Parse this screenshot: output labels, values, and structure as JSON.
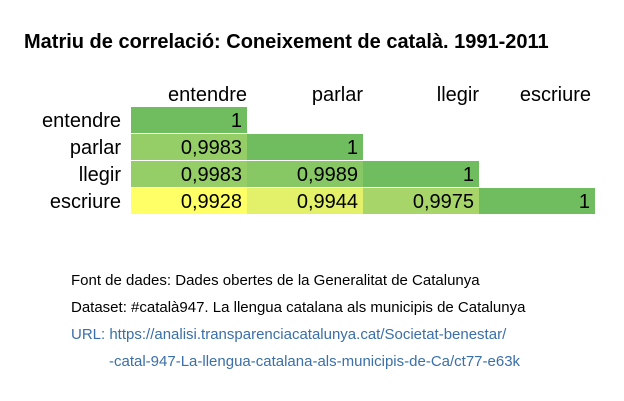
{
  "chart_data": {
    "type": "heatmap",
    "title": "Matriu de correlació: Coneixement de català. 1991-2011",
    "columns": [
      "entendre",
      "parlar",
      "llegir",
      "escriure"
    ],
    "rows": [
      "entendre",
      "parlar",
      "llegir",
      "escriure"
    ],
    "matrix": [
      [
        "1",
        null,
        null,
        null
      ],
      [
        "0,9983",
        "1",
        null,
        null
      ],
      [
        "0,9983",
        "0,9989",
        "1",
        null
      ],
      [
        "0,9928",
        "0,9944",
        "0,9975",
        "1"
      ]
    ],
    "color_scale": {
      "low": "#ffff66",
      "mid": "#bfe06e",
      "high": "#6fbd5f"
    }
  },
  "footer": {
    "source": "Font de dades: Dades obertes de la Generalitat de Catalunya",
    "dataset": "Dataset: #català947. La llengua catalana als municipis de Catalunya",
    "url_line1": "URL: https://analisi.transparenciacatalunya.cat/Societat-benestar/",
    "url_line2": "-catal-947-La-llengua-catalana-als-municipis-de-Ca/ct77-e63k"
  }
}
